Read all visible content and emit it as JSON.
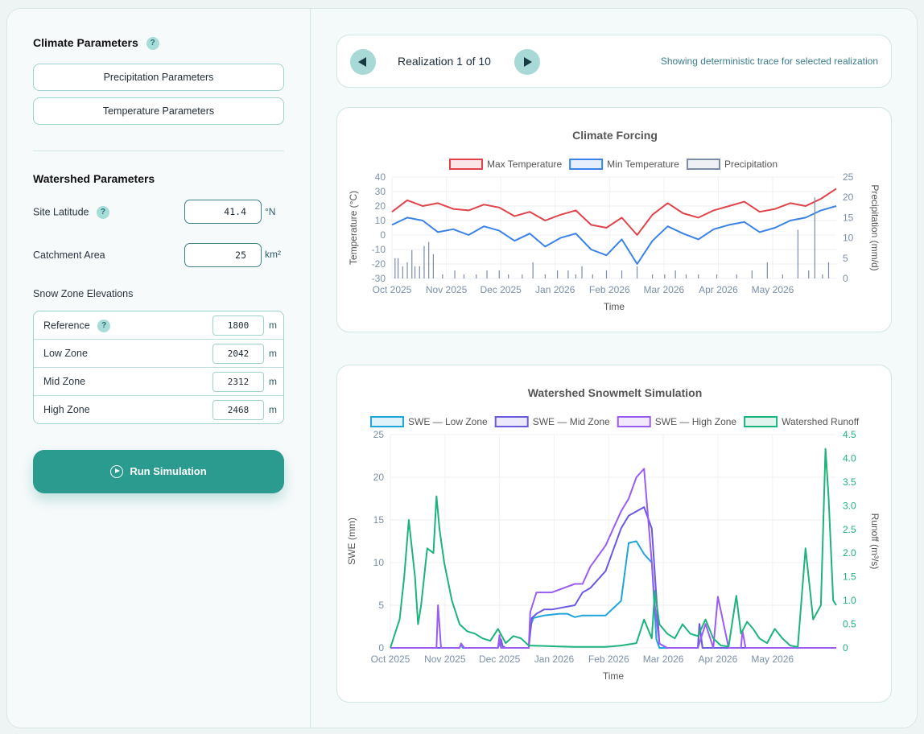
{
  "sidebar": {
    "climate_title": "Climate Parameters",
    "help_glyph": "?",
    "precip_btn": "Precipitation Parameters",
    "temp_btn": "Temperature Parameters",
    "watershed_title": "Watershed Parameters",
    "latitude_label": "Site Latitude",
    "latitude_value": "41.4",
    "latitude_unit": "°N",
    "area_label": "Catchment Area",
    "area_value": "25",
    "area_unit": "km²",
    "snow_zone_title": "Snow Zone Elevations",
    "zones": [
      {
        "label": "Reference",
        "value": "1800",
        "unit": "m",
        "help": true
      },
      {
        "label": "Low Zone",
        "value": "2042",
        "unit": "m"
      },
      {
        "label": "Mid Zone",
        "value": "2312",
        "unit": "m"
      },
      {
        "label": "High Zone",
        "value": "2468",
        "unit": "m"
      }
    ],
    "run_label": "Run Simulation"
  },
  "nav": {
    "realization_label": "Realization 1 of 10",
    "note": "Showing deterministic trace for selected realization"
  },
  "colors": {
    "accent": "#2a9b8e",
    "max_temp": "#e0434a",
    "min_temp": "#3b82e6",
    "precip": "#7d8ca6",
    "swe_low": "#1fa4dc",
    "swe_mid": "#6a5ae0",
    "swe_high": "#9b5cf0",
    "runoff": "#1db37c"
  },
  "chart_data": [
    {
      "type": "line",
      "title": "Climate Forcing",
      "xlabel": "Time",
      "ylabel": "Temperature (°C)",
      "y2label": "Precipitation (mm/d)",
      "x_ticks": [
        "Oct 2025",
        "Nov 2025",
        "Dec 2025",
        "Jan 2026",
        "Feb 2026",
        "Mar 2026",
        "Apr 2026",
        "May 2026"
      ],
      "ylim": [
        -30,
        40
      ],
      "y2lim": [
        0,
        25
      ],
      "y_ticks": [
        40,
        30,
        20,
        10,
        0,
        -10,
        -20,
        -30
      ],
      "y2_ticks": [
        25,
        20,
        15,
        10,
        5,
        0
      ],
      "legend": "top",
      "series": [
        {
          "name": "Max Temperature",
          "axis": "left",
          "x": [
            0,
            10,
            20,
            30,
            40,
            50,
            60,
            70,
            80,
            90,
            100,
            110,
            120,
            130,
            140,
            150,
            160,
            170,
            180,
            190,
            200,
            210,
            220,
            230,
            240,
            250,
            260,
            270,
            280,
            290
          ],
          "values": [
            16,
            24,
            20,
            22,
            18,
            17,
            21,
            19,
            13,
            16,
            10,
            14,
            17,
            7,
            5,
            12,
            0,
            14,
            22,
            15,
            12,
            17,
            20,
            23,
            16,
            18,
            22,
            20,
            25,
            32
          ]
        },
        {
          "name": "Min Temperature",
          "axis": "left",
          "x": [
            0,
            10,
            20,
            30,
            40,
            50,
            60,
            70,
            80,
            90,
            100,
            110,
            120,
            130,
            140,
            150,
            160,
            170,
            180,
            190,
            200,
            210,
            220,
            230,
            240,
            250,
            260,
            270,
            280,
            290
          ],
          "values": [
            7,
            12,
            10,
            2,
            4,
            0,
            6,
            3,
            -4,
            1,
            -8,
            -2,
            1,
            -10,
            -14,
            -3,
            -20,
            -4,
            6,
            1,
            -3,
            4,
            7,
            9,
            2,
            5,
            10,
            12,
            17,
            20
          ]
        },
        {
          "name": "Precipitation",
          "type": "bar",
          "axis": "right",
          "x": [
            2,
            4,
            7,
            10,
            13,
            15,
            18,
            21,
            24,
            27,
            33,
            41,
            47,
            55,
            62,
            70,
            76,
            85,
            92,
            100,
            108,
            115,
            120,
            124,
            131,
            140,
            150,
            160,
            170,
            178,
            185,
            192,
            200,
            212,
            225,
            235,
            245,
            255,
            265,
            272,
            276,
            281,
            285
          ],
          "values": [
            5,
            5,
            3,
            4,
            7,
            3,
            3,
            8,
            9,
            6,
            1,
            2,
            1,
            1,
            2,
            2,
            1,
            1,
            4,
            1,
            2,
            2,
            1,
            3,
            1,
            2,
            2,
            3,
            1,
            1,
            2,
            1,
            1,
            1,
            1,
            2,
            4,
            1,
            12,
            2,
            20,
            1,
            4
          ]
        }
      ]
    },
    {
      "type": "line",
      "title": "Watershed Snowmelt Simulation",
      "xlabel": "Time",
      "ylabel": "SWE (mm)",
      "y2label": "Runoff (m³/s)",
      "x_ticks": [
        "Oct 2025",
        "Nov 2025",
        "Dec 2025",
        "Jan 2026",
        "Feb 2026",
        "Mar 2026",
        "Apr 2026",
        "May 2026"
      ],
      "ylim": [
        0,
        25
      ],
      "y2lim": [
        0,
        4.5
      ],
      "y_ticks": [
        25,
        20,
        15,
        10,
        5,
        0
      ],
      "y2_ticks": [
        "4.5",
        "4.0",
        "3.5",
        "3.0",
        "2.5",
        "2.0",
        "1.5",
        "1.0",
        "0.5",
        "0"
      ],
      "legend": "top",
      "series": [
        {
          "name": "SWE — Low Zone",
          "axis": "left",
          "x": [
            0,
            45,
            46,
            47,
            70,
            71,
            72,
            75,
            90,
            91,
            93,
            100,
            110,
            115,
            120,
            125,
            140,
            150,
            155,
            160,
            165,
            170,
            173,
            175,
            180,
            185,
            200,
            201,
            203,
            206,
            290
          ],
          "values": [
            0,
            0,
            0.5,
            0,
            0,
            0.8,
            0,
            0,
            0,
            2.5,
            3.5,
            3.8,
            4.0,
            4.0,
            3.6,
            3.8,
            3.8,
            5.5,
            12.3,
            12.5,
            11.0,
            10.0,
            1.0,
            0,
            0,
            0,
            0,
            2.8,
            0,
            0,
            0
          ]
        },
        {
          "name": "SWE — Mid Zone",
          "axis": "left",
          "x": [
            0,
            45,
            46,
            48,
            70,
            72,
            73,
            75,
            90,
            92,
            95,
            100,
            105,
            120,
            125,
            130,
            140,
            150,
            155,
            160,
            165,
            170,
            173,
            175,
            180,
            185,
            200,
            201,
            203,
            206,
            290
          ],
          "values": [
            0,
            0,
            0.5,
            0,
            0,
            1.0,
            0.2,
            0,
            0,
            3.5,
            4.0,
            4.5,
            4.5,
            5.0,
            6.5,
            7.0,
            9.0,
            14.0,
            15.5,
            16.0,
            16.5,
            14.0,
            6.0,
            0.5,
            0,
            0,
            0,
            2.8,
            0,
            0,
            0
          ]
        },
        {
          "name": "SWE — High Zone",
          "axis": "left",
          "x": [
            0,
            30,
            31,
            33,
            45,
            46,
            48,
            70,
            71,
            72,
            75,
            90,
            91,
            95,
            105,
            120,
            125,
            130,
            140,
            150,
            155,
            160,
            165,
            170,
            172,
            175,
            180,
            185,
            200,
            205,
            210,
            213,
            220,
            228,
            229,
            231,
            290
          ],
          "values": [
            0,
            0,
            5,
            0,
            0,
            0.5,
            0,
            0,
            1.5,
            0,
            0,
            0,
            4.2,
            6.5,
            6.5,
            7.5,
            7.5,
            9.5,
            12.0,
            16.0,
            17.5,
            20.0,
            21.0,
            10.0,
            5.0,
            0.5,
            0,
            0,
            0,
            2.8,
            0,
            6.0,
            0,
            0,
            2.0,
            0,
            0
          ]
        },
        {
          "name": "Watershed Runoff",
          "axis": "right",
          "x": [
            0,
            3,
            6,
            9,
            12,
            16,
            18,
            20,
            24,
            28,
            30,
            32,
            35,
            40,
            45,
            50,
            55,
            60,
            65,
            70,
            75,
            80,
            85,
            90,
            100,
            110,
            120,
            130,
            140,
            150,
            160,
            165,
            170,
            172,
            175,
            180,
            185,
            190,
            195,
            200,
            205,
            210,
            215,
            220,
            225,
            228,
            232,
            236,
            240,
            245,
            250,
            255,
            260,
            265,
            270,
            275,
            280,
            283,
            285,
            288,
            290
          ],
          "values": [
            0,
            0.3,
            0.6,
            1.5,
            2.7,
            1.5,
            0.5,
            0.9,
            2.1,
            2.0,
            3.2,
            2.5,
            1.8,
            1.0,
            0.5,
            0.35,
            0.3,
            0.2,
            0.15,
            0.4,
            0.1,
            0.25,
            0.2,
            0.05,
            0.04,
            0.03,
            0.02,
            0.02,
            0.02,
            0.05,
            0.1,
            0.6,
            0.2,
            1.2,
            0.5,
            0.3,
            0.2,
            0.5,
            0.3,
            0.25,
            0.6,
            0.2,
            0.05,
            0.03,
            1.1,
            0.3,
            0.55,
            0.4,
            0.2,
            0.1,
            0.4,
            0.2,
            0.05,
            0.02,
            2.1,
            0.6,
            0.9,
            4.2,
            3.2,
            1.0,
            0.9
          ]
        }
      ]
    }
  ]
}
